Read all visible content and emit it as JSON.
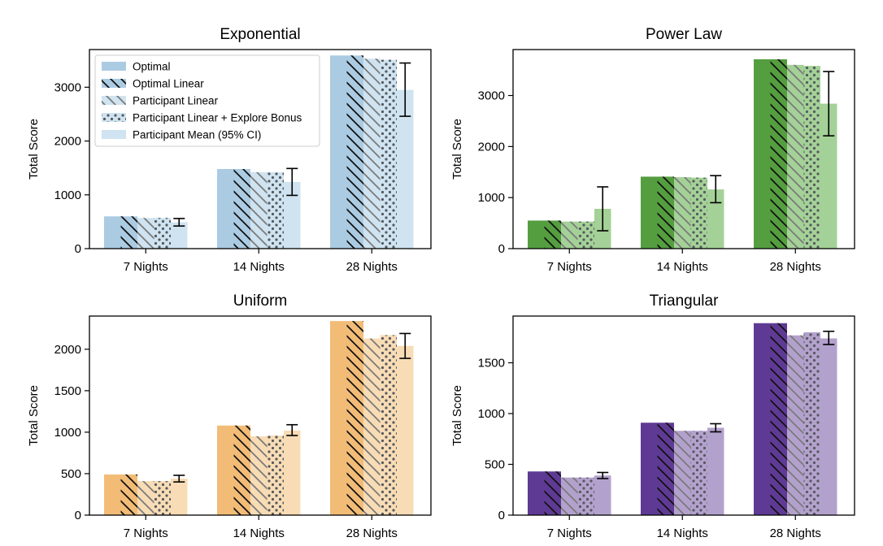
{
  "chart_data": [
    {
      "type": "bar",
      "title": "Exponential",
      "ylabel": "Total Score",
      "xlabel": "",
      "ylim": [
        0,
        3700
      ],
      "yticks": [
        0,
        1000,
        2000,
        3000
      ],
      "categories": [
        "7 Nights",
        "14 Nights",
        "28 Nights"
      ],
      "colors": {
        "dark": "#abcbe2",
        "light": "#cfe3f0"
      },
      "series": [
        {
          "name": "Optimal",
          "values": [
            600,
            1480,
            3590
          ]
        },
        {
          "name": "Optimal Linear",
          "values": [
            600,
            1480,
            3590
          ]
        },
        {
          "name": "Participant Linear",
          "values": [
            570,
            1420,
            3530
          ]
        },
        {
          "name": "Participant Linear + Explore Bonus",
          "values": [
            570,
            1420,
            3510
          ]
        },
        {
          "name": "Participant Mean (95% CI)",
          "values": [
            490,
            1240,
            2950
          ],
          "ci": [
            [
              420,
              560
            ],
            [
              990,
              1490
            ],
            [
              2460,
              3450
            ]
          ]
        }
      ],
      "legend": {
        "position": "upper-left",
        "entries": [
          "Optimal",
          "Optimal Linear",
          "Participant Linear",
          "Participant Linear + Explore Bonus",
          "Participant Mean (95% CI)"
        ]
      }
    },
    {
      "type": "bar",
      "title": "Power Law",
      "ylabel": "Total Score",
      "xlabel": "",
      "ylim": [
        0,
        3900
      ],
      "yticks": [
        0,
        1000,
        2000,
        3000
      ],
      "categories": [
        "7 Nights",
        "14 Nights",
        "28 Nights"
      ],
      "colors": {
        "dark": "#549e3f",
        "light": "#a4d197"
      },
      "series": [
        {
          "name": "Optimal",
          "values": [
            550,
            1410,
            3710
          ]
        },
        {
          "name": "Optimal Linear",
          "values": [
            550,
            1410,
            3710
          ]
        },
        {
          "name": "Participant Linear",
          "values": [
            530,
            1400,
            3600
          ]
        },
        {
          "name": "Participant Linear + Explore Bonus",
          "values": [
            530,
            1390,
            3580
          ]
        },
        {
          "name": "Participant Mean (95% CI)",
          "values": [
            780,
            1160,
            2840
          ],
          "ci": [
            [
              350,
              1210
            ],
            [
              900,
              1430
            ],
            [
              2210,
              3470
            ]
          ]
        }
      ]
    },
    {
      "type": "bar",
      "title": "Uniform",
      "ylabel": "Total Score",
      "xlabel": "",
      "ylim": [
        0,
        2400
      ],
      "yticks": [
        0,
        500,
        1000,
        1500,
        2000
      ],
      "categories": [
        "7 Nights",
        "14 Nights",
        "28 Nights"
      ],
      "colors": {
        "dark": "#f2bc77",
        "light": "#f8dcb5"
      },
      "series": [
        {
          "name": "Optimal",
          "values": [
            490,
            1080,
            2340
          ]
        },
        {
          "name": "Optimal Linear",
          "values": [
            490,
            1080,
            2340
          ]
        },
        {
          "name": "Participant Linear",
          "values": [
            410,
            950,
            2130
          ]
        },
        {
          "name": "Participant Linear + Explore Bonus",
          "values": [
            410,
            960,
            2170
          ]
        },
        {
          "name": "Participant Mean (95% CI)",
          "values": [
            440,
            1020,
            2040
          ],
          "ci": [
            [
              400,
              480
            ],
            [
              960,
              1090
            ],
            [
              1890,
              2190
            ]
          ]
        }
      ]
    },
    {
      "type": "bar",
      "title": "Triangular",
      "ylabel": "Total Score",
      "xlabel": "",
      "ylim": [
        0,
        1960
      ],
      "yticks": [
        0,
        500,
        1000,
        1500
      ],
      "categories": [
        "7 Nights",
        "14 Nights",
        "28 Nights"
      ],
      "colors": {
        "dark": "#5f3a95",
        "light": "#b3a1cd"
      },
      "series": [
        {
          "name": "Optimal",
          "values": [
            430,
            910,
            1890
          ]
        },
        {
          "name": "Optimal Linear",
          "values": [
            430,
            910,
            1890
          ]
        },
        {
          "name": "Participant Linear",
          "values": [
            370,
            830,
            1770
          ]
        },
        {
          "name": "Participant Linear + Explore Bonus",
          "values": [
            370,
            830,
            1800
          ]
        },
        {
          "name": "Participant Mean (95% CI)",
          "values": [
            390,
            860,
            1740
          ],
          "ci": [
            [
              360,
              420
            ],
            [
              820,
              900
            ],
            [
              1680,
              1810
            ]
          ]
        }
      ]
    }
  ]
}
